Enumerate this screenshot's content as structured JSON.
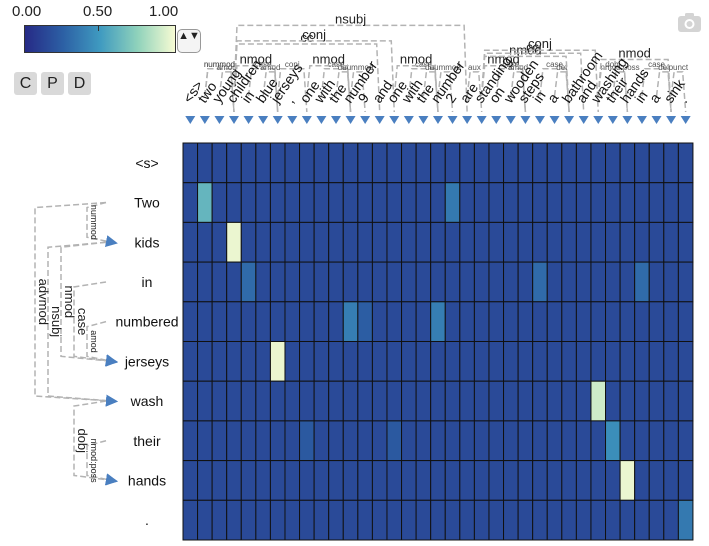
{
  "colorbar": {
    "min_label": "0.00",
    "mid_label": "0.50",
    "max_label": "1.00",
    "colors": [
      "#262a86",
      "#2c5fa4",
      "#3f9ac0",
      "#8fd2bb",
      "#f7fbd3"
    ]
  },
  "controls": {
    "stepper_label": "▲▼",
    "buttons": [
      "C",
      "P",
      "D"
    ],
    "camera_icon": "camera-icon"
  },
  "top_words": [
    "<s>",
    "two",
    "young",
    "children",
    "in",
    "blue",
    "jerseys",
    ",",
    "one",
    "with",
    "the",
    "number",
    "9",
    "and",
    "one",
    "with",
    "the",
    "number",
    "2",
    "are",
    "standing",
    "on",
    "wooden",
    "steps",
    "in",
    "a",
    "bathroom",
    "and",
    "washing",
    "their",
    "hands",
    "in",
    "a",
    "sink",
    "."
  ],
  "top_arcs": [
    {
      "from": 1,
      "to": 3,
      "label": "nummod"
    },
    {
      "from": 1,
      "to": 3,
      "label": "nummod"
    },
    {
      "from": 2,
      "to": 3,
      "label": "amod"
    },
    {
      "from": 4,
      "to": 6,
      "label": "case"
    },
    {
      "from": 5,
      "to": 6,
      "label": "amod"
    },
    {
      "from": 3,
      "to": 6,
      "label": "nmod"
    },
    {
      "from": 6,
      "to": 8,
      "label": "conj"
    },
    {
      "from": 9,
      "to": 11,
      "label": "case"
    },
    {
      "from": 10,
      "to": 11,
      "label": "det"
    },
    {
      "from": 11,
      "to": 12,
      "label": "nummod"
    },
    {
      "from": 8,
      "to": 11,
      "label": "nmod"
    },
    {
      "from": 3,
      "to": 13,
      "label": "cc"
    },
    {
      "from": 3,
      "to": 14,
      "label": "conj"
    },
    {
      "from": 15,
      "to": 17,
      "label": "case"
    },
    {
      "from": 16,
      "to": 17,
      "label": "det"
    },
    {
      "from": 17,
      "to": 18,
      "label": "nummod"
    },
    {
      "from": 14,
      "to": 17,
      "label": "nmod"
    },
    {
      "from": 3,
      "to": 19,
      "label": "nsubj"
    },
    {
      "from": 19,
      "to": 20,
      "label": "aux"
    },
    {
      "from": 21,
      "to": 23,
      "label": "case"
    },
    {
      "from": 22,
      "to": 23,
      "label": "amod"
    },
    {
      "from": 20,
      "to": 23,
      "label": "nmod"
    },
    {
      "from": 24,
      "to": 26,
      "label": "case"
    },
    {
      "from": 25,
      "to": 26,
      "label": "det"
    },
    {
      "from": 20,
      "to": 26,
      "label": "nmod"
    },
    {
      "from": 20,
      "to": 27,
      "label": "cc"
    },
    {
      "from": 20,
      "to": 28,
      "label": "conj"
    },
    {
      "from": 29,
      "to": 30,
      "label": "nmod:poss"
    },
    {
      "from": 28,
      "to": 30,
      "label": "dobj"
    },
    {
      "from": 31,
      "to": 33,
      "label": "case"
    },
    {
      "from": 32,
      "to": 33,
      "label": "det"
    },
    {
      "from": 28,
      "to": 33,
      "label": "nmod"
    },
    {
      "from": 33,
      "to": 34,
      "label": "punct"
    }
  ],
  "left_words": [
    "<s>",
    "Two",
    "kids",
    "in",
    "numbered",
    "jerseys",
    "wash",
    "their",
    "hands",
    "."
  ],
  "left_arcs": [
    {
      "from": 1,
      "to": 2,
      "label": "nummod"
    },
    {
      "from": 3,
      "to": 5,
      "label": "case"
    },
    {
      "from": 4,
      "to": 5,
      "label": "amod"
    },
    {
      "from": 2,
      "to": 5,
      "label": "nmod"
    },
    {
      "from": 2,
      "to": 6,
      "label": "nsubj"
    },
    {
      "from": 1,
      "to": 6,
      "label": "advmod"
    },
    {
      "from": 7,
      "to": 8,
      "label": "nmod:poss"
    },
    {
      "from": 6,
      "to": 8,
      "label": "dobj"
    }
  ],
  "chart_data": {
    "type": "heatmap",
    "rows": 10,
    "cols": 35,
    "base_value": 0.15,
    "cells": [
      {
        "row": 1,
        "col": 1,
        "value": 0.62
      },
      {
        "row": 1,
        "col": 18,
        "value": 0.36
      },
      {
        "row": 2,
        "col": 3,
        "value": 0.97
      },
      {
        "row": 3,
        "col": 4,
        "value": 0.3
      },
      {
        "row": 3,
        "col": 24,
        "value": 0.3
      },
      {
        "row": 3,
        "col": 31,
        "value": 0.3
      },
      {
        "row": 4,
        "col": 11,
        "value": 0.38
      },
      {
        "row": 4,
        "col": 12,
        "value": 0.24
      },
      {
        "row": 4,
        "col": 17,
        "value": 0.38
      },
      {
        "row": 5,
        "col": 6,
        "value": 0.97
      },
      {
        "row": 6,
        "col": 28,
        "value": 0.9
      },
      {
        "row": 7,
        "col": 8,
        "value": 0.22
      },
      {
        "row": 7,
        "col": 14,
        "value": 0.22
      },
      {
        "row": 7,
        "col": 29,
        "value": 0.45
      },
      {
        "row": 8,
        "col": 30,
        "value": 0.97
      },
      {
        "row": 9,
        "col": 34,
        "value": 0.36
      }
    ]
  }
}
